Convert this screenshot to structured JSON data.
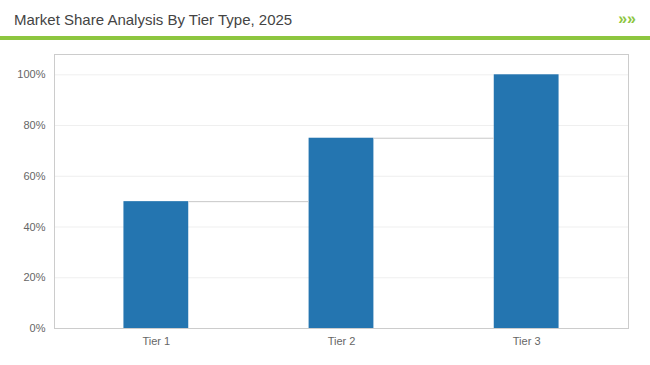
{
  "chart_data": {
    "type": "bar",
    "title": "Market Share Analysis By Tier Type, 2025",
    "annotations": [
      "»»"
    ],
    "categories": [
      "Tier 1",
      "Tier 2",
      "Tier 3"
    ],
    "values": [
      50,
      75,
      100
    ],
    "color": "#2475B0",
    "ylim": [
      0,
      108
    ],
    "yticks": [
      {
        "value": 0,
        "label": "0%"
      },
      {
        "value": 20,
        "label": "20%"
      },
      {
        "value": 40,
        "label": "40%"
      },
      {
        "value": 60,
        "label": "60%"
      },
      {
        "value": 80,
        "label": "80%"
      },
      {
        "value": 100,
        "label": "100%"
      }
    ],
    "grid": true
  }
}
